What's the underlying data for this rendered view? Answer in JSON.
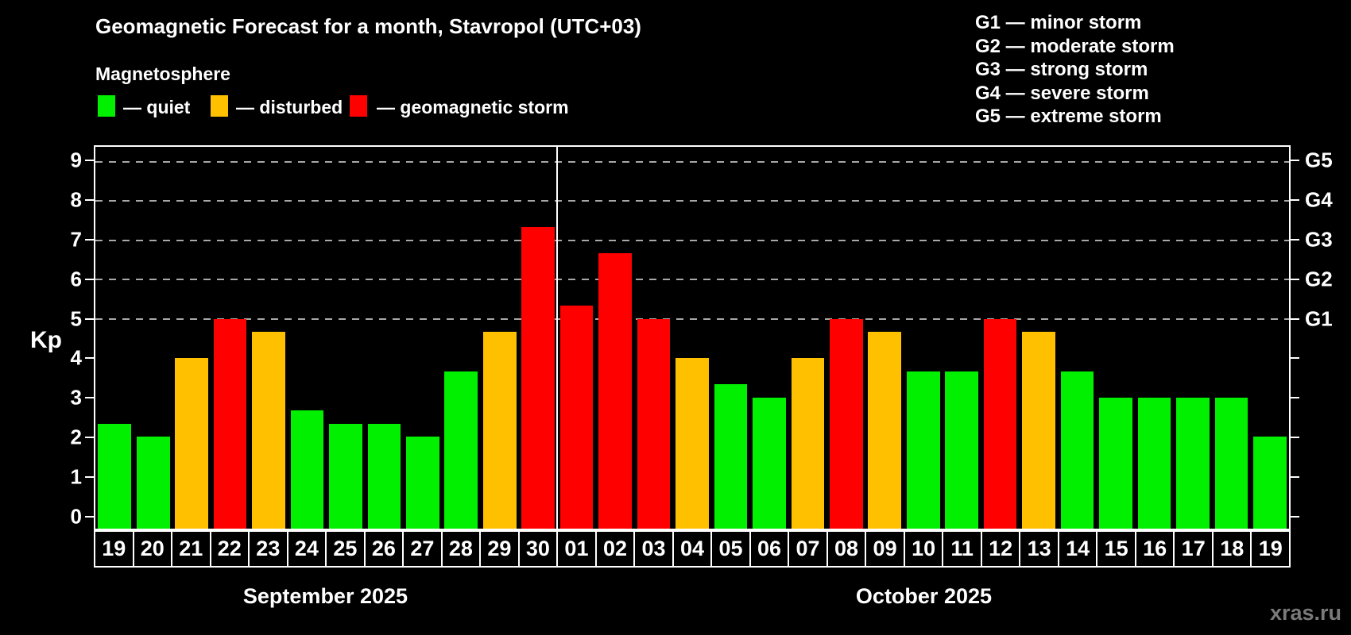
{
  "page": {
    "background": "#000000",
    "watermark": "xras.ru"
  },
  "header": {
    "title": "Geomagnetic Forecast for a month, Stavropol (UTC+03)",
    "subtitle": "Magnetosphere"
  },
  "legend": {
    "items": [
      {
        "key": "quiet",
        "label": "— quiet",
        "color": "#00f000"
      },
      {
        "key": "disturbed",
        "label": "— disturbed",
        "color": "#ffc000"
      },
      {
        "key": "storm",
        "label": "— geomagnetic storm",
        "color": "#ff0000"
      }
    ]
  },
  "storm_scale_legend": {
    "items": [
      "G1 — minor storm",
      "G2 — moderate storm",
      "G3 — strong storm",
      "G4 — severe storm",
      "G5 — extreme storm"
    ]
  },
  "chart_data": {
    "type": "bar",
    "ylabel": "Kp",
    "ylim": [
      0,
      9
    ],
    "y_ticks": [
      0,
      1,
      2,
      3,
      4,
      5,
      6,
      7,
      8,
      9
    ],
    "gridline_values": [
      5,
      6,
      7,
      8,
      9
    ],
    "grid_style": "dashed",
    "legend_position": "top-left",
    "right_axis_labels": [
      {
        "value": 5,
        "label": "G1"
      },
      {
        "value": 6,
        "label": "G2"
      },
      {
        "value": 7,
        "label": "G3"
      },
      {
        "value": 8,
        "label": "G4"
      },
      {
        "value": 9,
        "label": "G5"
      }
    ],
    "groups": [
      {
        "label": "September 2025",
        "days": [
          {
            "day": "19",
            "kp": 2.33,
            "status": "quiet"
          },
          {
            "day": "20",
            "kp": 2.0,
            "status": "quiet"
          },
          {
            "day": "21",
            "kp": 4.0,
            "status": "disturbed"
          },
          {
            "day": "22",
            "kp": 5.0,
            "status": "storm"
          },
          {
            "day": "23",
            "kp": 4.67,
            "status": "disturbed"
          },
          {
            "day": "24",
            "kp": 2.67,
            "status": "quiet"
          },
          {
            "day": "25",
            "kp": 2.33,
            "status": "quiet"
          },
          {
            "day": "26",
            "kp": 2.33,
            "status": "quiet"
          },
          {
            "day": "27",
            "kp": 2.0,
            "status": "quiet"
          },
          {
            "day": "28",
            "kp": 3.67,
            "status": "quiet"
          },
          {
            "day": "29",
            "kp": 4.67,
            "status": "disturbed"
          },
          {
            "day": "30",
            "kp": 7.33,
            "status": "storm"
          }
        ]
      },
      {
        "label": "October 2025",
        "days": [
          {
            "day": "01",
            "kp": 5.33,
            "status": "storm"
          },
          {
            "day": "02",
            "kp": 6.67,
            "status": "storm"
          },
          {
            "day": "03",
            "kp": 5.0,
            "status": "storm"
          },
          {
            "day": "04",
            "kp": 4.0,
            "status": "disturbed"
          },
          {
            "day": "05",
            "kp": 3.33,
            "status": "quiet"
          },
          {
            "day": "06",
            "kp": 3.0,
            "status": "quiet"
          },
          {
            "day": "07",
            "kp": 4.0,
            "status": "disturbed"
          },
          {
            "day": "08",
            "kp": 5.0,
            "status": "storm"
          },
          {
            "day": "09",
            "kp": 4.67,
            "status": "disturbed"
          },
          {
            "day": "10",
            "kp": 3.67,
            "status": "quiet"
          },
          {
            "day": "11",
            "kp": 3.67,
            "status": "quiet"
          },
          {
            "day": "12",
            "kp": 5.0,
            "status": "storm"
          },
          {
            "day": "13",
            "kp": 4.67,
            "status": "disturbed"
          },
          {
            "day": "14",
            "kp": 3.67,
            "status": "quiet"
          },
          {
            "day": "15",
            "kp": 3.0,
            "status": "quiet"
          },
          {
            "day": "16",
            "kp": 3.0,
            "status": "quiet"
          },
          {
            "day": "17",
            "kp": 3.0,
            "status": "quiet"
          },
          {
            "day": "18",
            "kp": 3.0,
            "status": "quiet"
          },
          {
            "day": "19",
            "kp": 2.0,
            "status": "quiet"
          }
        ]
      }
    ]
  }
}
